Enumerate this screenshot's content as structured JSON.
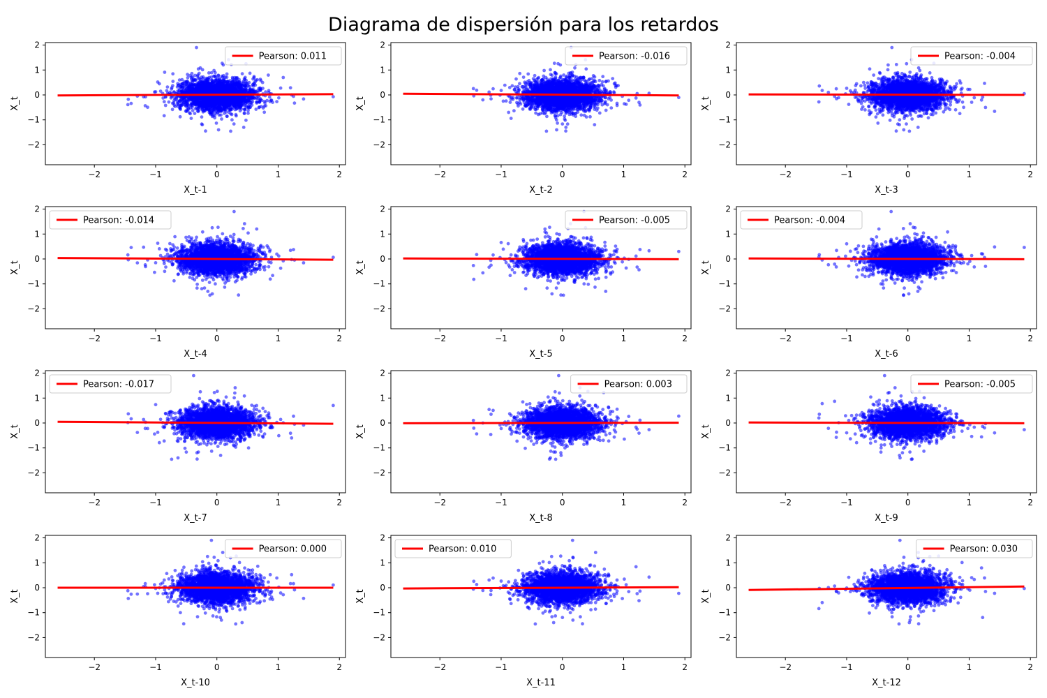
{
  "title": "Diagrama de dispersión para los retardos",
  "colors": {
    "points": "#0000ff",
    "fit_line": "#ff0000",
    "axes": "#000000",
    "legend_border": "#cccccc"
  },
  "chart_data": [
    {
      "type": "scatter",
      "xlabel": "X_t-1",
      "ylabel": "X_t",
      "xlim": [
        -2.8,
        2.1
      ],
      "ylim": [
        -2.8,
        2.1
      ],
      "xticks": [
        -2,
        -1,
        0,
        1,
        2
      ],
      "yticks": [
        -2,
        -1,
        0,
        1,
        2
      ],
      "legend": "Pearson: 0.011",
      "legend_loc": "upper right",
      "pearson": 0.011,
      "fit_line": {
        "x": [
          -2.6,
          1.9
        ],
        "y": [
          -0.02,
          0.03
        ]
      },
      "series": [
        {
          "type": "scatter",
          "n_points": 3000,
          "x_center": 0,
          "y_center": 0,
          "x_spread": 0.3,
          "y_spread": 0.3,
          "x_range": [
            -2.6,
            1.9
          ],
          "y_range": [
            -2.6,
            1.9
          ]
        }
      ]
    },
    {
      "type": "scatter",
      "xlabel": "X_t-2",
      "ylabel": "X_t",
      "xlim": [
        -2.8,
        2.1
      ],
      "ylim": [
        -2.8,
        2.1
      ],
      "xticks": [
        -2,
        -1,
        0,
        1,
        2
      ],
      "yticks": [
        -2,
        -1,
        0,
        1,
        2
      ],
      "legend": "Pearson: -0.016",
      "legend_loc": "upper right",
      "pearson": -0.016,
      "fit_line": {
        "x": [
          -2.6,
          1.9
        ],
        "y": [
          0.05,
          -0.02
        ]
      },
      "series": [
        {
          "type": "scatter",
          "n_points": 3000,
          "x_center": 0,
          "y_center": 0,
          "x_spread": 0.3,
          "y_spread": 0.3,
          "x_range": [
            -2.6,
            1.9
          ],
          "y_range": [
            -2.6,
            1.9
          ]
        }
      ]
    },
    {
      "type": "scatter",
      "xlabel": "X_t-3",
      "ylabel": "X_t",
      "xlim": [
        -2.8,
        2.1
      ],
      "ylim": [
        -2.8,
        2.1
      ],
      "xticks": [
        -2,
        -1,
        0,
        1,
        2
      ],
      "yticks": [
        -2,
        -1,
        0,
        1,
        2
      ],
      "legend": "Pearson: -0.004",
      "legend_loc": "upper right",
      "pearson": -0.004,
      "fit_line": {
        "x": [
          -2.6,
          1.9
        ],
        "y": [
          0.02,
          0.0
        ]
      },
      "series": [
        {
          "type": "scatter",
          "n_points": 3000,
          "x_center": 0,
          "y_center": 0,
          "x_spread": 0.3,
          "y_spread": 0.3,
          "x_range": [
            -2.6,
            1.9
          ],
          "y_range": [
            -2.6,
            1.9
          ]
        }
      ]
    },
    {
      "type": "scatter",
      "xlabel": "X_t-4",
      "ylabel": "X_t",
      "xlim": [
        -2.8,
        2.1
      ],
      "ylim": [
        -2.8,
        2.1
      ],
      "xticks": [
        -2,
        -1,
        0,
        1,
        2
      ],
      "yticks": [
        -2,
        -1,
        0,
        1,
        2
      ],
      "legend": "Pearson: -0.014",
      "legend_loc": "upper left",
      "pearson": -0.014,
      "fit_line": {
        "x": [
          -2.6,
          1.9
        ],
        "y": [
          0.04,
          -0.03
        ]
      },
      "series": [
        {
          "type": "scatter",
          "n_points": 3000,
          "x_center": 0,
          "y_center": 0,
          "x_spread": 0.3,
          "y_spread": 0.3,
          "x_range": [
            -2.6,
            1.9
          ],
          "y_range": [
            -2.6,
            1.9
          ]
        }
      ]
    },
    {
      "type": "scatter",
      "xlabel": "X_t-5",
      "ylabel": "X_t",
      "xlim": [
        -2.8,
        2.1
      ],
      "ylim": [
        -2.8,
        2.1
      ],
      "xticks": [
        -2,
        -1,
        0,
        1,
        2
      ],
      "yticks": [
        -2,
        -1,
        0,
        1,
        2
      ],
      "legend": "Pearson: -0.005",
      "legend_loc": "upper right",
      "pearson": -0.005,
      "fit_line": {
        "x": [
          -2.6,
          1.9
        ],
        "y": [
          0.02,
          -0.01
        ]
      },
      "series": [
        {
          "type": "scatter",
          "n_points": 3000,
          "x_center": 0,
          "y_center": 0,
          "x_spread": 0.3,
          "y_spread": 0.3,
          "x_range": [
            -2.6,
            1.9
          ],
          "y_range": [
            -2.6,
            1.9
          ]
        }
      ]
    },
    {
      "type": "scatter",
      "xlabel": "X_t-6",
      "ylabel": "X_t",
      "xlim": [
        -2.8,
        2.1
      ],
      "ylim": [
        -2.8,
        2.1
      ],
      "xticks": [
        -2,
        -1,
        0,
        1,
        2
      ],
      "yticks": [
        -2,
        -1,
        0,
        1,
        2
      ],
      "legend": "Pearson: -0.004",
      "legend_loc": "upper left",
      "pearson": -0.004,
      "fit_line": {
        "x": [
          -2.6,
          1.9
        ],
        "y": [
          0.02,
          -0.01
        ]
      },
      "series": [
        {
          "type": "scatter",
          "n_points": 3000,
          "x_center": 0,
          "y_center": 0,
          "x_spread": 0.3,
          "y_spread": 0.3,
          "x_range": [
            -2.6,
            1.9
          ],
          "y_range": [
            -2.6,
            1.9
          ]
        }
      ]
    },
    {
      "type": "scatter",
      "xlabel": "X_t-7",
      "ylabel": "X_t",
      "xlim": [
        -2.8,
        2.1
      ],
      "ylim": [
        -2.8,
        2.1
      ],
      "xticks": [
        -2,
        -1,
        0,
        1,
        2
      ],
      "yticks": [
        -2,
        -1,
        0,
        1,
        2
      ],
      "legend": "Pearson: -0.017",
      "legend_loc": "upper left",
      "pearson": -0.017,
      "fit_line": {
        "x": [
          -2.6,
          1.9
        ],
        "y": [
          0.05,
          -0.03
        ]
      },
      "series": [
        {
          "type": "scatter",
          "n_points": 3000,
          "x_center": 0,
          "y_center": 0,
          "x_spread": 0.3,
          "y_spread": 0.3,
          "x_range": [
            -2.6,
            1.9
          ],
          "y_range": [
            -2.6,
            1.9
          ]
        }
      ]
    },
    {
      "type": "scatter",
      "xlabel": "X_t-8",
      "ylabel": "X_t",
      "xlim": [
        -2.8,
        2.1
      ],
      "ylim": [
        -2.8,
        2.1
      ],
      "xticks": [
        -2,
        -1,
        0,
        1,
        2
      ],
      "yticks": [
        -2,
        -1,
        0,
        1,
        2
      ],
      "legend": "Pearson: 0.003",
      "legend_loc": "upper right",
      "pearson": 0.003,
      "fit_line": {
        "x": [
          -2.6,
          1.9
        ],
        "y": [
          -0.01,
          0.01
        ]
      },
      "series": [
        {
          "type": "scatter",
          "n_points": 3000,
          "x_center": 0,
          "y_center": 0,
          "x_spread": 0.3,
          "y_spread": 0.3,
          "x_range": [
            -2.6,
            1.9
          ],
          "y_range": [
            -2.6,
            1.9
          ]
        }
      ]
    },
    {
      "type": "scatter",
      "xlabel": "X_t-9",
      "ylabel": "X_t",
      "xlim": [
        -2.8,
        2.1
      ],
      "ylim": [
        -2.8,
        2.1
      ],
      "xticks": [
        -2,
        -1,
        0,
        1,
        2
      ],
      "yticks": [
        -2,
        -1,
        0,
        1,
        2
      ],
      "legend": "Pearson: -0.005",
      "legend_loc": "upper right",
      "pearson": -0.005,
      "fit_line": {
        "x": [
          -2.6,
          1.9
        ],
        "y": [
          0.02,
          -0.01
        ]
      },
      "series": [
        {
          "type": "scatter",
          "n_points": 3000,
          "x_center": 0,
          "y_center": 0,
          "x_spread": 0.3,
          "y_spread": 0.3,
          "x_range": [
            -2.6,
            1.9
          ],
          "y_range": [
            -2.6,
            1.9
          ]
        }
      ]
    },
    {
      "type": "scatter",
      "xlabel": "X_t-10",
      "ylabel": "X_t",
      "xlim": [
        -2.8,
        2.1
      ],
      "ylim": [
        -2.8,
        2.1
      ],
      "xticks": [
        -2,
        -1,
        0,
        1,
        2
      ],
      "yticks": [
        -2,
        -1,
        0,
        1,
        2
      ],
      "legend": "Pearson: 0.000",
      "legend_loc": "upper right",
      "pearson": 0.0,
      "fit_line": {
        "x": [
          -2.6,
          1.9
        ],
        "y": [
          0.0,
          0.0
        ]
      },
      "series": [
        {
          "type": "scatter",
          "n_points": 3000,
          "x_center": 0,
          "y_center": 0,
          "x_spread": 0.3,
          "y_spread": 0.3,
          "x_range": [
            -2.6,
            1.9
          ],
          "y_range": [
            -2.6,
            1.9
          ]
        }
      ]
    },
    {
      "type": "scatter",
      "xlabel": "X_t-11",
      "ylabel": "X_t",
      "xlim": [
        -2.8,
        2.1
      ],
      "ylim": [
        -2.8,
        2.1
      ],
      "xticks": [
        -2,
        -1,
        0,
        1,
        2
      ],
      "yticks": [
        -2,
        -1,
        0,
        1,
        2
      ],
      "legend": "Pearson: 0.010",
      "legend_loc": "upper left",
      "pearson": 0.01,
      "fit_line": {
        "x": [
          -2.6,
          1.9
        ],
        "y": [
          -0.03,
          0.02
        ]
      },
      "series": [
        {
          "type": "scatter",
          "n_points": 3000,
          "x_center": 0,
          "y_center": 0,
          "x_spread": 0.3,
          "y_spread": 0.3,
          "x_range": [
            -2.6,
            1.9
          ],
          "y_range": [
            -2.6,
            1.9
          ]
        }
      ]
    },
    {
      "type": "scatter",
      "xlabel": "X_t-12",
      "ylabel": "X_t",
      "xlim": [
        -2.8,
        2.1
      ],
      "ylim": [
        -2.8,
        2.1
      ],
      "xticks": [
        -2,
        -1,
        0,
        1,
        2
      ],
      "yticks": [
        -2,
        -1,
        0,
        1,
        2
      ],
      "legend": "Pearson: 0.030",
      "legend_loc": "upper right",
      "pearson": 0.03,
      "fit_line": {
        "x": [
          -2.6,
          1.9
        ],
        "y": [
          -0.09,
          0.05
        ]
      },
      "series": [
        {
          "type": "scatter",
          "n_points": 3000,
          "x_center": 0,
          "y_center": 0,
          "x_spread": 0.3,
          "y_spread": 0.3,
          "x_range": [
            -2.6,
            1.9
          ],
          "y_range": [
            -2.6,
            1.9
          ]
        }
      ]
    }
  ]
}
